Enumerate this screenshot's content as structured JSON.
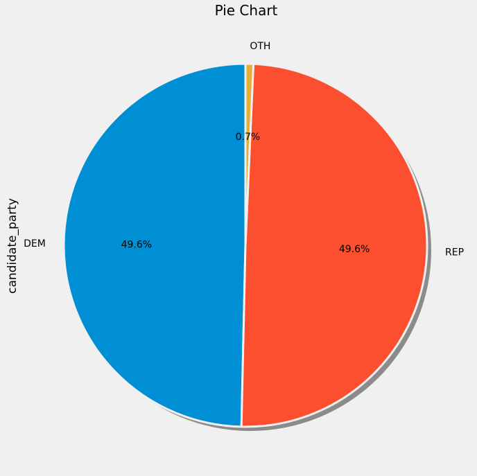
{
  "chart_data": {
    "type": "pie",
    "title": "Pie Chart",
    "ylabel": "candidate_party",
    "categories": [
      "DEM",
      "REP",
      "OTH"
    ],
    "values": [
      49.6,
      49.6,
      0.7
    ],
    "pct_labels": [
      "49.6%",
      "49.6%",
      "0.7%"
    ],
    "colors": [
      "#008fd5",
      "#fc4f30",
      "#e5ae38"
    ],
    "background": "#f0f0f0",
    "shadow": true,
    "start_angle": "90",
    "direction": "counterclockwise"
  }
}
